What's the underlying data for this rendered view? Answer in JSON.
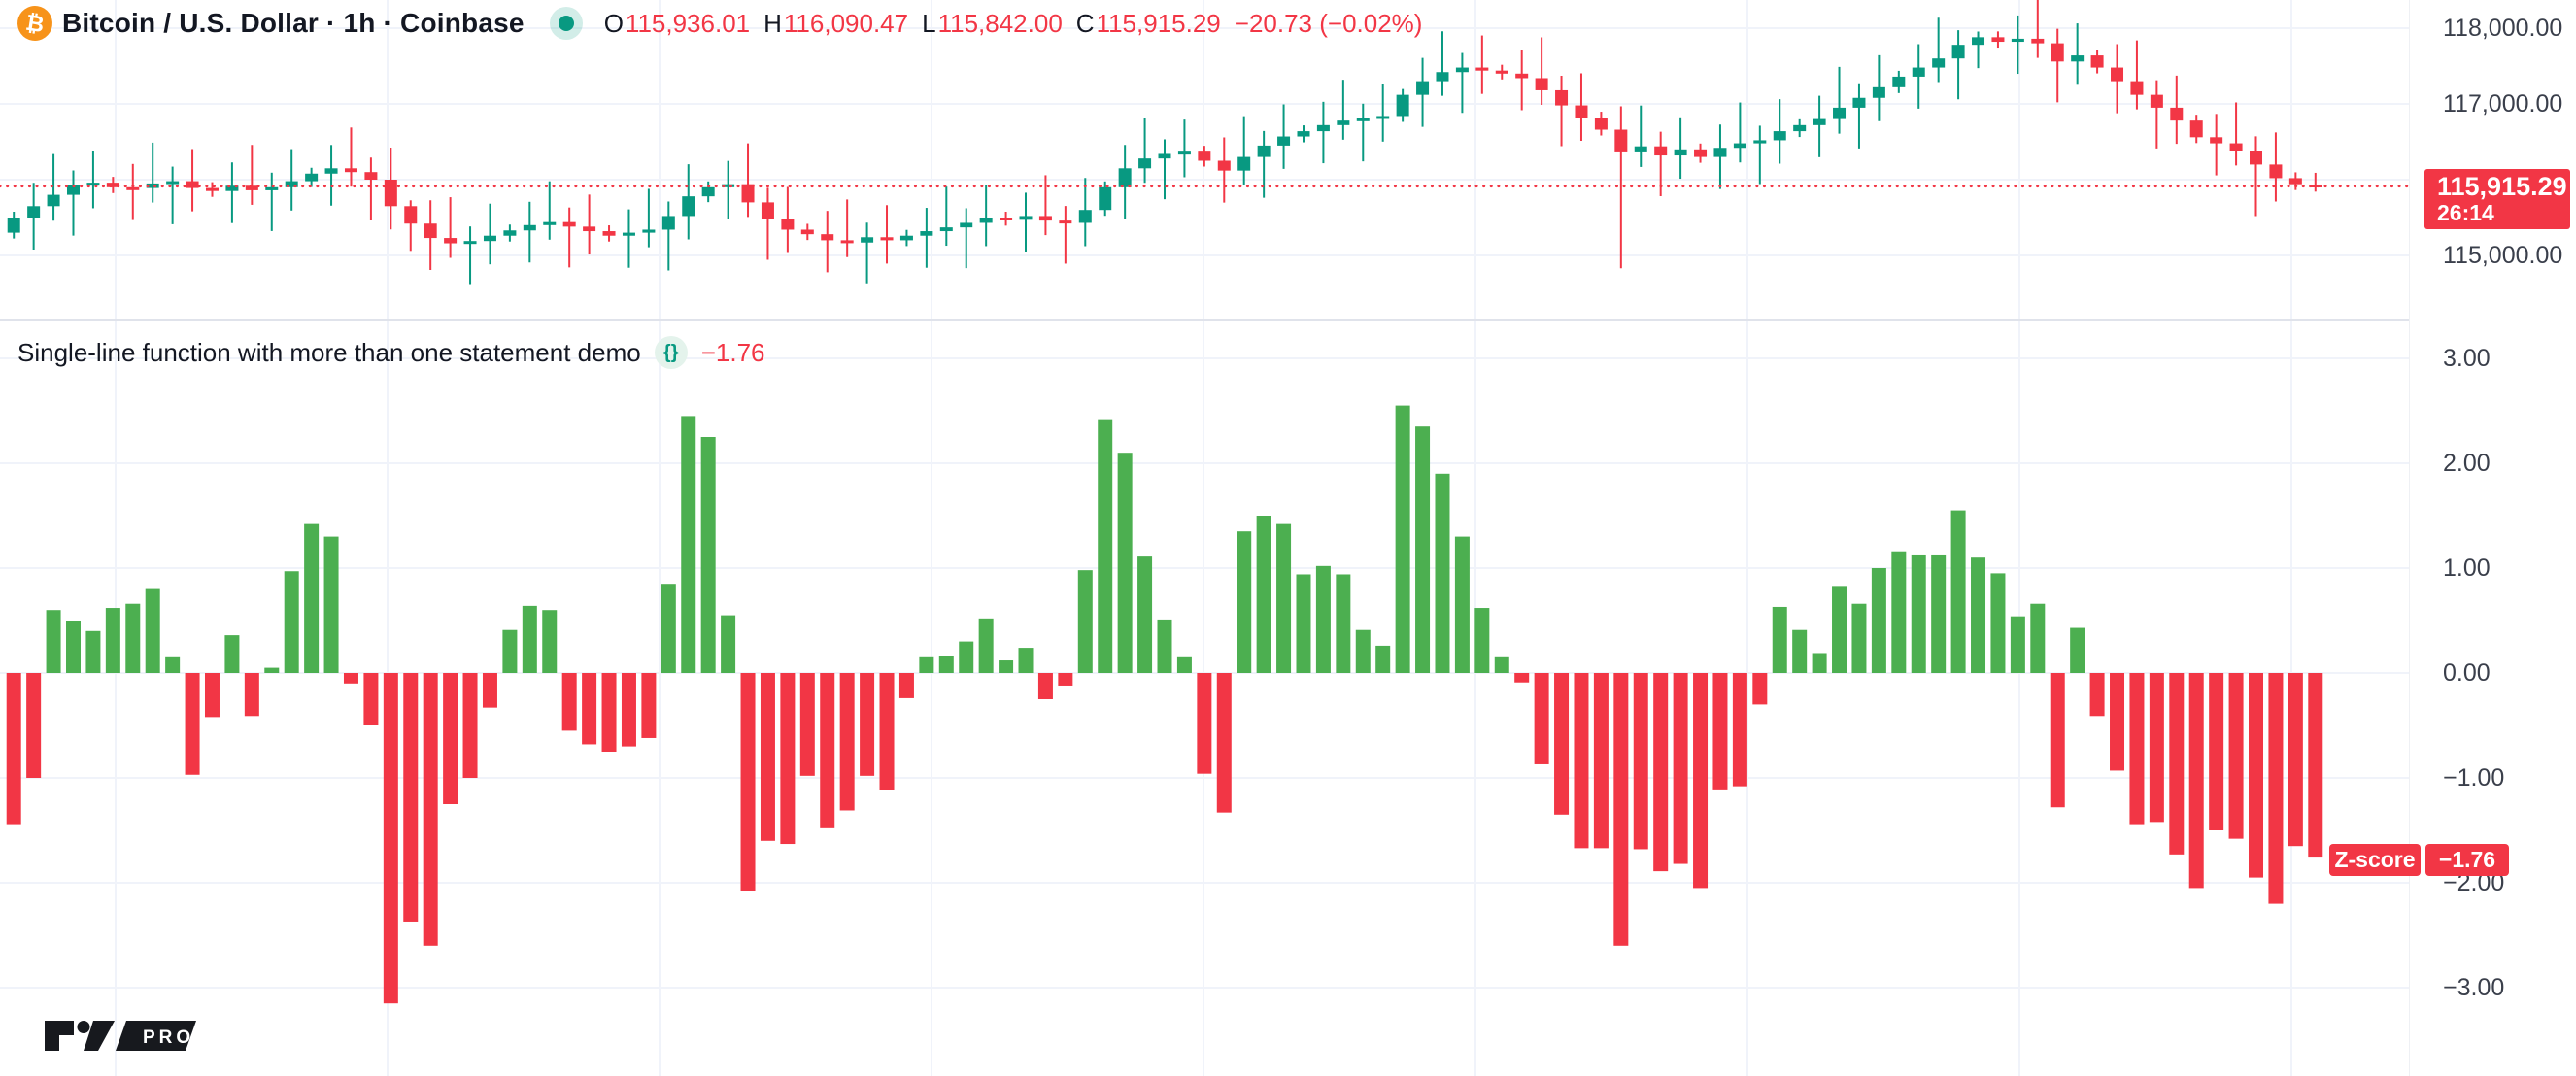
{
  "header": {
    "title": "Bitcoin / U.S. Dollar · 1h · Coinbase",
    "symbol_icon": "bitcoin-icon",
    "status_icon": "market-status-icon",
    "ohlc": {
      "o_label": "O",
      "o": "115,936.01",
      "h_label": "H",
      "h": "116,090.47",
      "l_label": "L",
      "l": "115,842.00",
      "c_label": "C",
      "c": "115,915.29",
      "change": "−20.73 (−0.02%)"
    }
  },
  "price_scale": {
    "ticks": [
      "118,000.00",
      "117,000.00",
      "116,000.00",
      "115,000.00"
    ],
    "last_price_label": "115,915.29",
    "countdown": "26:14"
  },
  "indicator": {
    "title": "Single-line function with more than one statement demo",
    "icon": "braces-icon",
    "value": "−1.76",
    "name_badge": "Z-score",
    "value_badge": "−1.76",
    "ticks": [
      "3.00",
      "2.00",
      "1.00",
      "0.00",
      "−1.00",
      "−2.00",
      "−3.00"
    ]
  },
  "logo": {
    "badge": "PRO"
  },
  "colors": {
    "candle_up": "#089981",
    "candle_down": "#f23645",
    "hist_up": "#4caf50",
    "hist_down": "#f23645",
    "price_line": "#f23645",
    "label_bg": "#f23645",
    "grid": "#f0f3fa",
    "separator": "#e0e3eb",
    "axis_text": "#3a3f4b",
    "text": "#131722",
    "btc_orange": "#f7931a"
  },
  "chart_data": [
    {
      "type": "candlestick",
      "title": "Bitcoin / U.S. Dollar",
      "timeframe": "1h",
      "exchange": "Coinbase",
      "ylim": [
        114800,
        118150
      ],
      "yticks": [
        118000,
        117000,
        116000,
        115000
      ],
      "grid": true,
      "last_price": 115915.29,
      "first_open": 115300,
      "closes": [
        115500,
        115650,
        115800,
        115930,
        115960,
        115900,
        115890,
        115950,
        115980,
        115890,
        115850,
        115920,
        115860,
        115900,
        115980,
        116080,
        116150,
        116100,
        116000,
        115650,
        115420,
        115230,
        115160,
        115190,
        115260,
        115330,
        115400,
        115440,
        115380,
        115320,
        115260,
        115300,
        115340,
        115520,
        115780,
        115900,
        115940,
        115700,
        115480,
        115340,
        115280,
        115200,
        115170,
        115240,
        115200,
        115260,
        115320,
        115370,
        115430,
        115500,
        115470,
        115520,
        115460,
        115430,
        115600,
        115900,
        116150,
        116280,
        116340,
        116370,
        116250,
        116120,
        116300,
        116450,
        116570,
        116640,
        116720,
        116780,
        116810,
        116840,
        117120,
        117300,
        117420,
        117480,
        117440,
        117400,
        117340,
        117180,
        116980,
        116820,
        116660,
        116360,
        116440,
        116320,
        116400,
        116300,
        116420,
        116480,
        116520,
        116640,
        116720,
        116800,
        116950,
        117080,
        117220,
        117360,
        117480,
        117600,
        117780,
        117880,
        117820,
        117860,
        117800,
        117560,
        117640,
        117480,
        117300,
        117120,
        116950,
        116780,
        116560,
        116480,
        116380,
        116200,
        116020,
        115940,
        115915.29
      ],
      "last_candle": {
        "open": 115936.01,
        "high": 116090.47,
        "low": 115842.0,
        "close": 115915.29
      },
      "special_lows": [
        {
          "index": 20,
          "low": 115060
        },
        {
          "index": 81,
          "low": 114830
        },
        {
          "index": 113,
          "low": 115520
        }
      ],
      "special_highs": [
        {
          "index": 99,
          "high": 117955
        }
      ]
    },
    {
      "type": "bar",
      "title": "Single-line function with more than one statement demo",
      "series_name": "Z-score",
      "last_value": -1.76,
      "ylim": [
        -3.5,
        3.35
      ],
      "yticks": [
        3,
        2,
        1,
        0,
        -1,
        -2,
        -3
      ],
      "grid": true,
      "values": [
        -1.45,
        -1.0,
        0.6,
        0.5,
        0.4,
        0.62,
        0.66,
        0.8,
        0.15,
        -0.97,
        -0.42,
        0.36,
        -0.41,
        0.05,
        0.97,
        1.42,
        1.3,
        -0.1,
        -0.5,
        -3.15,
        -2.37,
        -2.6,
        -1.25,
        -1.0,
        -0.33,
        0.41,
        0.64,
        0.6,
        -0.55,
        -0.68,
        -0.75,
        -0.7,
        -0.62,
        0.85,
        2.45,
        2.25,
        0.55,
        -2.08,
        -1.6,
        -1.63,
        -0.98,
        -1.48,
        -1.31,
        -0.98,
        -1.12,
        -0.24,
        0.15,
        0.16,
        0.3,
        0.52,
        0.12,
        0.24,
        -0.25,
        -0.12,
        0.98,
        2.42,
        2.1,
        1.11,
        0.51,
        0.15,
        -0.96,
        -1.33,
        1.35,
        1.5,
        1.42,
        0.94,
        1.02,
        0.94,
        0.41,
        0.26,
        2.55,
        2.35,
        1.9,
        1.3,
        0.62,
        0.15,
        -0.09,
        -0.87,
        -1.35,
        -1.67,
        -1.67,
        -2.6,
        -1.68,
        -1.89,
        -1.82,
        -2.05,
        -1.11,
        -1.08,
        -0.3,
        0.63,
        0.41,
        0.19,
        0.83,
        0.66,
        1.0,
        1.16,
        1.13,
        1.13,
        1.55,
        1.1,
        0.95,
        0.54,
        0.66,
        -1.28,
        0.43,
        -0.41,
        -0.93,
        -1.45,
        -1.42,
        -1.73,
        -2.05,
        -1.5,
        -1.58,
        -1.95,
        -2.2,
        -1.65,
        -1.76
      ]
    }
  ]
}
